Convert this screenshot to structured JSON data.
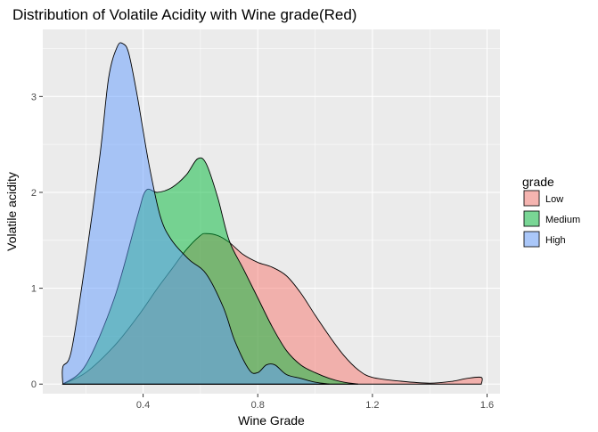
{
  "chart_data": {
    "type": "area",
    "title": "Distribution of Volatile Acidity with Wine grade(Red)",
    "xlabel": "Wine Grade",
    "ylabel": "Volatile acidity",
    "xlim": [
      0.05,
      1.645
    ],
    "ylim": [
      -0.1,
      3.7
    ],
    "x_ticks": [
      0.4,
      0.8,
      1.2,
      1.6
    ],
    "x_tick_labels": [
      "0.4",
      "0.8",
      "1.2",
      "1.6"
    ],
    "y_ticks": [
      0,
      1,
      2,
      3
    ],
    "y_tick_labels": [
      "0",
      "1",
      "2",
      "3"
    ],
    "grid": true,
    "legend": {
      "title": "grade",
      "placement": "right"
    },
    "series": [
      {
        "name": "Low",
        "color": "#F8766D",
        "points": [
          [
            0.12,
            0.0
          ],
          [
            0.2,
            0.12
          ],
          [
            0.3,
            0.4
          ],
          [
            0.38,
            0.7
          ],
          [
            0.45,
            1.0
          ],
          [
            0.5,
            1.2
          ],
          [
            0.55,
            1.4
          ],
          [
            0.6,
            1.55
          ],
          [
            0.62,
            1.57
          ],
          [
            0.66,
            1.55
          ],
          [
            0.7,
            1.48
          ],
          [
            0.75,
            1.35
          ],
          [
            0.8,
            1.27
          ],
          [
            0.85,
            1.22
          ],
          [
            0.9,
            1.13
          ],
          [
            0.95,
            0.95
          ],
          [
            1.0,
            0.72
          ],
          [
            1.05,
            0.5
          ],
          [
            1.1,
            0.3
          ],
          [
            1.15,
            0.15
          ],
          [
            1.2,
            0.07
          ],
          [
            1.3,
            0.03
          ],
          [
            1.4,
            0.01
          ],
          [
            1.48,
            0.03
          ],
          [
            1.53,
            0.06
          ],
          [
            1.58,
            0.07
          ],
          [
            1.58,
            0.0
          ]
        ]
      },
      {
        "name": "Medium",
        "color": "#00BA38",
        "points": [
          [
            0.12,
            0.0
          ],
          [
            0.2,
            0.2
          ],
          [
            0.3,
            0.9
          ],
          [
            0.38,
            1.75
          ],
          [
            0.41,
            2.02
          ],
          [
            0.45,
            2.0
          ],
          [
            0.5,
            2.05
          ],
          [
            0.55,
            2.18
          ],
          [
            0.59,
            2.35
          ],
          [
            0.62,
            2.3
          ],
          [
            0.66,
            1.95
          ],
          [
            0.7,
            1.5
          ],
          [
            0.75,
            1.2
          ],
          [
            0.8,
            0.9
          ],
          [
            0.85,
            0.6
          ],
          [
            0.9,
            0.35
          ],
          [
            0.95,
            0.2
          ],
          [
            1.0,
            0.12
          ],
          [
            1.05,
            0.06
          ],
          [
            1.1,
            0.02
          ],
          [
            1.15,
            0.0
          ]
        ]
      },
      {
        "name": "High",
        "color": "#619CFF",
        "points": [
          [
            0.12,
            0.0
          ],
          [
            0.12,
            0.18
          ],
          [
            0.15,
            0.35
          ],
          [
            0.2,
            1.3
          ],
          [
            0.25,
            2.4
          ],
          [
            0.28,
            3.2
          ],
          [
            0.31,
            3.52
          ],
          [
            0.33,
            3.55
          ],
          [
            0.35,
            3.45
          ],
          [
            0.38,
            3.0
          ],
          [
            0.42,
            2.3
          ],
          [
            0.46,
            1.75
          ],
          [
            0.5,
            1.5
          ],
          [
            0.56,
            1.3
          ],
          [
            0.62,
            1.15
          ],
          [
            0.68,
            0.8
          ],
          [
            0.72,
            0.45
          ],
          [
            0.77,
            0.15
          ],
          [
            0.8,
            0.12
          ],
          [
            0.83,
            0.2
          ],
          [
            0.86,
            0.2
          ],
          [
            0.9,
            0.1
          ],
          [
            0.95,
            0.06
          ],
          [
            1.0,
            0.02
          ],
          [
            1.05,
            0.0
          ]
        ]
      }
    ]
  }
}
